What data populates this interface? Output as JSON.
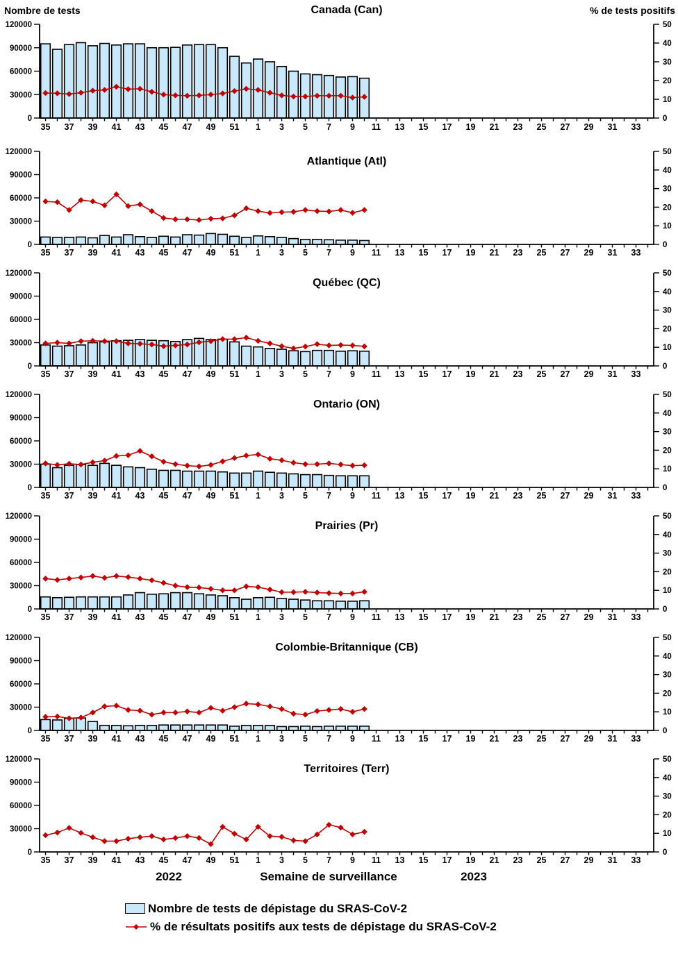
{
  "header": {
    "left_axis_title": "Nombre de tests",
    "right_axis_title": "% de tests positifs"
  },
  "footer": {
    "year_left": "2022",
    "x_axis_title": "Semaine de surveillance",
    "year_right": "2023"
  },
  "legend": {
    "tests_label": "Nombre de tests de dépistage du SRAS-CoV-2",
    "positivity_label": "% de résultats positifs aux tests de dépistage du SRAS-CoV-2"
  },
  "colors": {
    "bar_fill": "#C9E8FA",
    "bar_border": "#000000",
    "line": "#C00000",
    "text": "#000000"
  },
  "chart_data": {
    "type": "bar",
    "subtype": "bar+line dual-axis, 7 stacked regional panels",
    "x_axis": {
      "slot_count": 52,
      "tick_labels": [
        "35",
        "37",
        "39",
        "41",
        "43",
        "45",
        "47",
        "49",
        "51",
        "1",
        "3",
        "5",
        "7",
        "9",
        "11",
        "13",
        "15",
        "17",
        "19",
        "21",
        "23",
        "25",
        "27",
        "29",
        "31",
        "33"
      ],
      "title": "Semaine de surveillance",
      "year_left": "2022",
      "year_right": "2023"
    },
    "left_axis": {
      "title": "Nombre de tests",
      "ticks": [
        0,
        30000,
        60000,
        90000,
        120000
      ],
      "max": 120000
    },
    "right_axis": {
      "title": "% de tests positifs",
      "ticks": [
        0,
        10,
        20,
        30,
        40,
        50
      ],
      "max": 50
    },
    "categories": [
      "35",
      "36",
      "37",
      "38",
      "39",
      "40",
      "41",
      "42",
      "43",
      "44",
      "45",
      "46",
      "47",
      "48",
      "49",
      "50",
      "51",
      "52",
      "1",
      "2",
      "3",
      "4",
      "5",
      "6",
      "7",
      "8",
      "9",
      "10"
    ],
    "panels": [
      {
        "title": "Canada (Can)",
        "tests": [
          95000,
          88000,
          94000,
          96500,
          92500,
          95500,
          93500,
          95000,
          95000,
          90000,
          90000,
          90500,
          93500,
          94000,
          94000,
          90000,
          79000,
          70500,
          75500,
          72000,
          66000,
          60000,
          56500,
          55500,
          54500,
          52500,
          53000,
          51000
        ],
        "pct_positive": [
          13.3,
          13.2,
          12.8,
          13.5,
          14.6,
          15.0,
          16.7,
          15.4,
          15.6,
          14.0,
          12.5,
          12.1,
          11.9,
          12.1,
          12.5,
          13.1,
          14.4,
          15.6,
          15.0,
          13.5,
          12.1,
          11.5,
          11.5,
          11.9,
          11.9,
          11.9,
          10.9,
          11.3
        ]
      },
      {
        "title": "Atlantique (Atl)",
        "tests": [
          9500,
          9000,
          9000,
          9500,
          8500,
          11500,
          9500,
          12500,
          10000,
          9000,
          10500,
          9500,
          12500,
          12000,
          14000,
          13000,
          10500,
          9000,
          11000,
          10000,
          9000,
          7500,
          6500,
          6500,
          6000,
          5500,
          5500,
          5000
        ],
        "pct_positive": [
          23.1,
          22.7,
          18.5,
          23.8,
          23.1,
          21.0,
          26.9,
          20.6,
          21.5,
          17.9,
          14.2,
          13.5,
          13.5,
          13.1,
          13.8,
          14.0,
          15.6,
          19.4,
          17.9,
          16.9,
          17.3,
          17.5,
          18.5,
          17.9,
          17.7,
          18.5,
          17.0,
          18.5
        ]
      },
      {
        "title": "Québec (QC)",
        "tests": [
          27000,
          25500,
          26000,
          27000,
          30000,
          31000,
          32500,
          33000,
          34000,
          33000,
          32500,
          31500,
          34000,
          35500,
          34000,
          34500,
          31000,
          25500,
          24500,
          22500,
          21500,
          19500,
          18500,
          20000,
          20000,
          19000,
          19500,
          19000
        ],
        "pct_positive": [
          12.1,
          12.5,
          12.1,
          13.3,
          13.5,
          13.3,
          13.3,
          12.1,
          11.9,
          11.5,
          10.6,
          11.0,
          11.5,
          12.7,
          13.3,
          14.4,
          14.4,
          15.2,
          13.5,
          12.1,
          10.6,
          9.4,
          10.4,
          11.7,
          11.0,
          11.2,
          11.0,
          10.5
        ]
      },
      {
        "title": "Ontario (ON)",
        "tests": [
          30000,
          25500,
          28500,
          29500,
          28500,
          31000,
          28500,
          26500,
          25500,
          23500,
          22000,
          22000,
          21000,
          21000,
          21000,
          20000,
          18500,
          18500,
          21000,
          19500,
          18500,
          17500,
          16500,
          16500,
          15500,
          15000,
          15000,
          15000
        ],
        "pct_positive": [
          12.9,
          12.1,
          12.7,
          12.3,
          13.5,
          14.4,
          16.9,
          17.3,
          19.6,
          16.7,
          13.8,
          12.5,
          11.7,
          11.3,
          12.1,
          14.0,
          15.8,
          17.1,
          17.7,
          15.4,
          14.6,
          13.3,
          12.5,
          12.5,
          12.9,
          12.3,
          11.7,
          11.9
        ]
      },
      {
        "title": "Prairies (Pr)",
        "tests": [
          15500,
          14500,
          15000,
          15500,
          15500,
          15500,
          15500,
          18000,
          21000,
          19000,
          19500,
          21000,
          21000,
          19500,
          18000,
          17000,
          14500,
          12500,
          14500,
          15000,
          13500,
          12500,
          11500,
          10500,
          10500,
          10000,
          10000,
          10500
        ],
        "pct_positive": [
          16.3,
          15.6,
          16.3,
          16.9,
          17.7,
          16.7,
          17.7,
          17.1,
          16.3,
          15.4,
          14.0,
          12.5,
          11.7,
          11.5,
          10.8,
          10.0,
          10.0,
          12.1,
          11.7,
          10.4,
          9.0,
          9.0,
          9.2,
          8.8,
          8.5,
          8.3,
          8.3,
          9.2
        ]
      },
      {
        "title": "Colombie-Britannique (CB)",
        "tests": [
          14000,
          13500,
          15500,
          16000,
          11500,
          6500,
          6500,
          6000,
          6500,
          6500,
          7000,
          7000,
          7000,
          7000,
          7000,
          7000,
          5500,
          6500,
          6500,
          6500,
          5000,
          5000,
          5500,
          5000,
          5500,
          5500,
          5500,
          5500
        ],
        "pct_positive": [
          7.3,
          7.5,
          6.5,
          6.9,
          9.6,
          12.9,
          13.3,
          11.0,
          10.6,
          8.5,
          9.6,
          9.6,
          10.2,
          9.6,
          12.1,
          10.6,
          12.5,
          14.4,
          14.0,
          12.9,
          11.5,
          9.0,
          8.5,
          10.4,
          11.0,
          11.5,
          10.0,
          11.5
        ]
      },
      {
        "title": "Territoires (Terr)",
        "tests": [
          0,
          0,
          0,
          0,
          0,
          0,
          0,
          0,
          0,
          0,
          0,
          0,
          0,
          0,
          0,
          0,
          0,
          0,
          0,
          0,
          0,
          0,
          0,
          0,
          0,
          0,
          0,
          0
        ],
        "pct_positive": [
          9.0,
          10.4,
          12.9,
          10.2,
          7.9,
          5.8,
          5.8,
          7.1,
          7.9,
          8.5,
          6.7,
          7.5,
          8.5,
          7.5,
          4.2,
          13.5,
          9.8,
          6.7,
          13.5,
          8.5,
          8.1,
          6.2,
          5.8,
          9.4,
          14.6,
          13.1,
          9.4,
          10.8
        ]
      }
    ]
  }
}
